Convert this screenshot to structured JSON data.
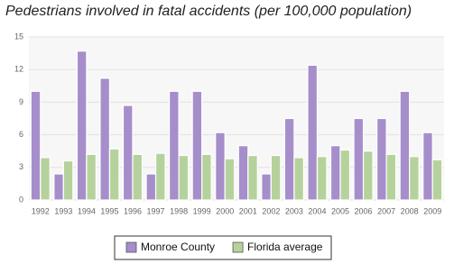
{
  "chart_data": {
    "type": "bar",
    "title": "Pedestrians involved in fatal accidents (per 100,000 population)",
    "categories": [
      "1992",
      "1993",
      "1994",
      "1995",
      "1996",
      "1997",
      "1998",
      "1999",
      "2000",
      "2001",
      "2002",
      "2003",
      "2004",
      "2005",
      "2006",
      "2007",
      "2008",
      "2009"
    ],
    "series": [
      {
        "name": "Monroe County",
        "color": "#a68ecb",
        "values": [
          10.0,
          2.4,
          13.7,
          11.2,
          8.7,
          2.4,
          10.0,
          10.0,
          6.2,
          5.0,
          2.4,
          7.5,
          12.4,
          5.0,
          7.5,
          7.5,
          10.0,
          6.2
        ]
      },
      {
        "name": "Florida average",
        "color": "#b6d29c",
        "values": [
          3.9,
          3.6,
          4.2,
          4.7,
          4.2,
          4.3,
          4.1,
          4.2,
          3.8,
          4.1,
          4.1,
          3.9,
          4.0,
          4.6,
          4.5,
          4.2,
          4.0,
          3.7
        ]
      }
    ],
    "ylim": [
      0,
      15
    ],
    "yticks": [
      0,
      3,
      6,
      9,
      12,
      15
    ],
    "grid": true,
    "legend": "bottom"
  }
}
